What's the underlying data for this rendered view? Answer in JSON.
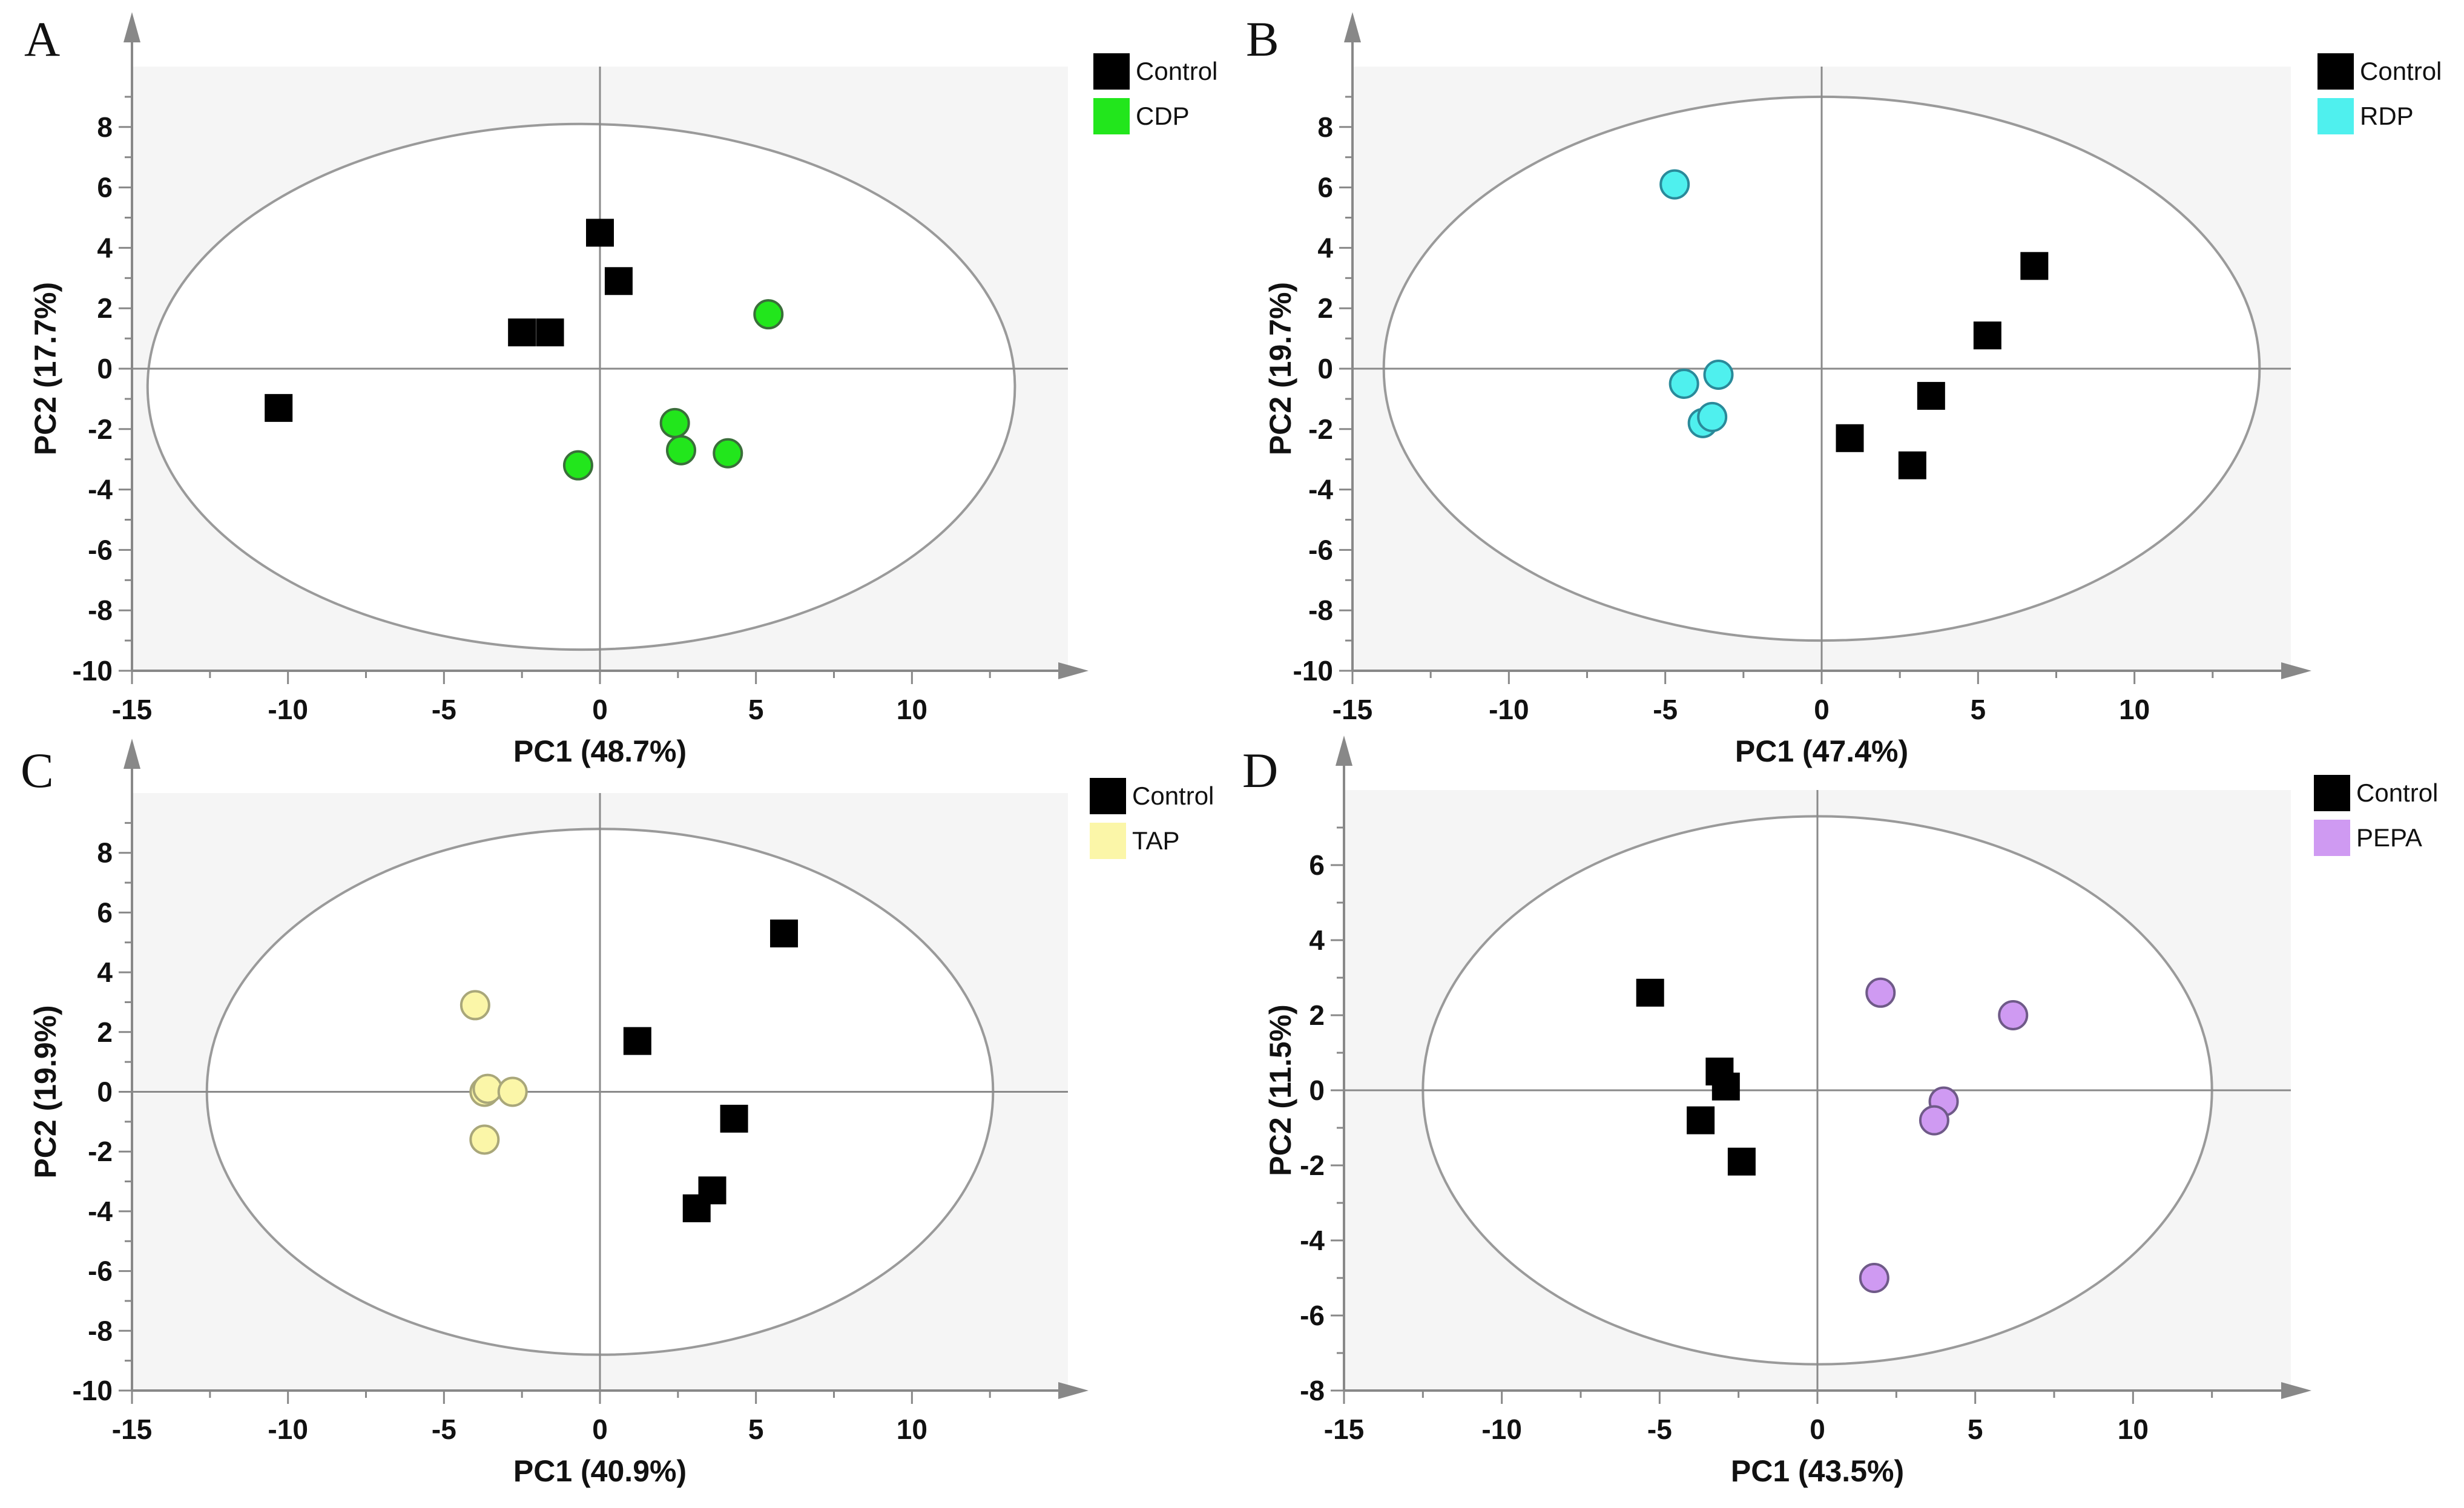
{
  "chart_data": [
    {
      "panel": "A",
      "type": "scatter",
      "xlabel": "PC1  (48.7%)",
      "ylabel": "PC2  (17.7%)",
      "xlim": [
        -15,
        15
      ],
      "ylim": [
        -10,
        10
      ],
      "xticks": [
        -15,
        -10,
        -5,
        0,
        5,
        10
      ],
      "yticks": [
        -10,
        -8,
        -6,
        -4,
        -2,
        0,
        2,
        4,
        6,
        8
      ],
      "ellipse": {
        "cx": -0.6,
        "cy": -0.6,
        "rx": 13.9,
        "ry": 8.7
      },
      "series": [
        {
          "name": "Control",
          "marker": "square",
          "color": "#000000",
          "points": [
            [
              -10.3,
              -1.3
            ],
            [
              -2.5,
              1.2
            ],
            [
              -1.6,
              1.2
            ],
            [
              0.0,
              4.5
            ],
            [
              0.6,
              2.9
            ]
          ]
        },
        {
          "name": "CDP",
          "marker": "circle",
          "color": "#22e61c",
          "points": [
            [
              -0.7,
              -3.2
            ],
            [
              2.4,
              -1.8
            ],
            [
              2.6,
              -2.7
            ],
            [
              4.1,
              -2.8
            ],
            [
              5.4,
              1.8
            ]
          ]
        }
      ]
    },
    {
      "panel": "B",
      "type": "scatter",
      "xlabel": "PC1 (47.4%)",
      "ylabel": "PC2 (19.7%)",
      "xlim": [
        -15,
        15
      ],
      "ylim": [
        -10,
        10
      ],
      "xticks": [
        -15,
        -10,
        -5,
        0,
        5,
        10
      ],
      "yticks": [
        -10,
        -8,
        -6,
        -4,
        -2,
        0,
        2,
        4,
        6,
        8
      ],
      "ellipse": {
        "cx": 0,
        "cy": 0,
        "rx": 14.0,
        "ry": 9.0
      },
      "series": [
        {
          "name": "Control",
          "marker": "square",
          "color": "#000000",
          "points": [
            [
              0.9,
              -2.3
            ],
            [
              2.9,
              -3.2
            ],
            [
              3.5,
              -0.9
            ],
            [
              5.3,
              1.1
            ],
            [
              6.8,
              3.4
            ]
          ]
        },
        {
          "name": "RDP",
          "marker": "circle",
          "color": "#4ff0ee",
          "points": [
            [
              -4.7,
              6.1
            ],
            [
              -4.4,
              -0.5
            ],
            [
              -3.8,
              -1.8
            ],
            [
              -3.5,
              -1.6
            ],
            [
              -3.3,
              -0.2
            ]
          ]
        }
      ]
    },
    {
      "panel": "C",
      "type": "scatter",
      "xlabel": "PC1 (40.9%)",
      "ylabel": "PC2 (19.9%)",
      "xlim": [
        -15,
        15
      ],
      "ylim": [
        -10,
        10
      ],
      "xticks": [
        -15,
        -10,
        -5,
        0,
        5,
        10
      ],
      "yticks": [
        -10,
        -8,
        -6,
        -4,
        -2,
        0,
        2,
        4,
        6,
        8
      ],
      "ellipse": {
        "cx": 0,
        "cy": 0,
        "rx": 12.6,
        "ry": 8.8
      },
      "series": [
        {
          "name": "Control",
          "marker": "square",
          "color": "#000000",
          "points": [
            [
              1.2,
              1.7
            ],
            [
              3.1,
              -3.9
            ],
            [
              3.6,
              -3.3
            ],
            [
              4.3,
              -0.9
            ],
            [
              5.9,
              5.3
            ]
          ]
        },
        {
          "name": "TAP",
          "marker": "circle",
          "color": "#fbf6a8",
          "points": [
            [
              -4.0,
              2.9
            ],
            [
              -3.7,
              0.0
            ],
            [
              -3.6,
              0.1
            ],
            [
              -3.7,
              -1.6
            ],
            [
              -2.8,
              0.0
            ]
          ]
        }
      ]
    },
    {
      "panel": "D",
      "type": "scatter",
      "xlabel": "PC1 (43.5%)",
      "ylabel": "PC2 (11.5%)",
      "xlim": [
        -15,
        15
      ],
      "ylim": [
        -8,
        8
      ],
      "xticks": [
        -15,
        -10,
        -5,
        0,
        5,
        10
      ],
      "yticks": [
        -8,
        -6,
        -4,
        -2,
        0,
        2,
        4,
        6
      ],
      "ellipse": {
        "cx": 0,
        "cy": 0,
        "rx": 12.5,
        "ry": 7.3
      },
      "series": [
        {
          "name": "Control",
          "marker": "square",
          "color": "#000000",
          "points": [
            [
              -5.3,
              2.6
            ],
            [
              -3.1,
              0.5
            ],
            [
              -2.9,
              0.1
            ],
            [
              -3.7,
              -0.8
            ],
            [
              -2.4,
              -1.9
            ]
          ]
        },
        {
          "name": "PEPA",
          "marker": "circle",
          "color": "#cf9af2",
          "points": [
            [
              2.0,
              2.6
            ],
            [
              6.2,
              2.0
            ],
            [
              4.0,
              -0.3
            ],
            [
              3.7,
              -0.8
            ],
            [
              1.8,
              -5.0
            ]
          ]
        }
      ]
    }
  ]
}
